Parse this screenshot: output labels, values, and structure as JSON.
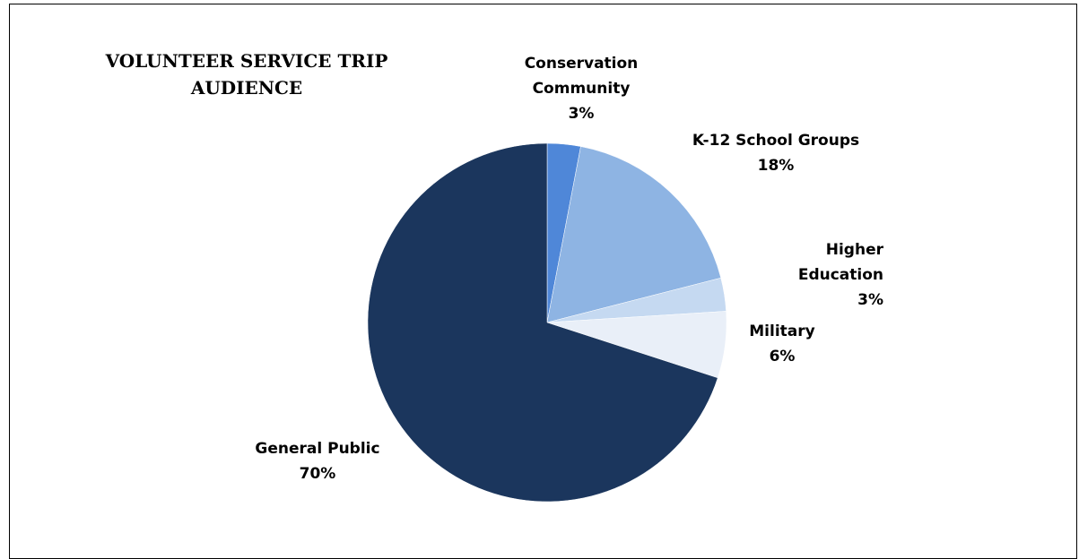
{
  "chart_data": {
    "type": "pie",
    "title": [
      "VOLUNTEER SERVICE TRIP",
      "AUDIENCE"
    ],
    "slices": [
      {
        "label": [
          "Conservation",
          "Community"
        ],
        "value": 3,
        "value_label": "3%",
        "color": "#4f87d8"
      },
      {
        "label": [
          "K-12 School Groups"
        ],
        "value": 18,
        "value_label": "18%",
        "color": "#8eb4e3"
      },
      {
        "label": [
          "Higher",
          "Education"
        ],
        "value": 3,
        "value_label": "3%",
        "color": "#c5d9f1"
      },
      {
        "label": [
          "Military"
        ],
        "value": 6,
        "value_label": "6%",
        "color": "#e9eff8"
      },
      {
        "label": [
          "General Public"
        ],
        "value": 70,
        "value_label": "70%",
        "color": "#1b365d"
      }
    ]
  }
}
